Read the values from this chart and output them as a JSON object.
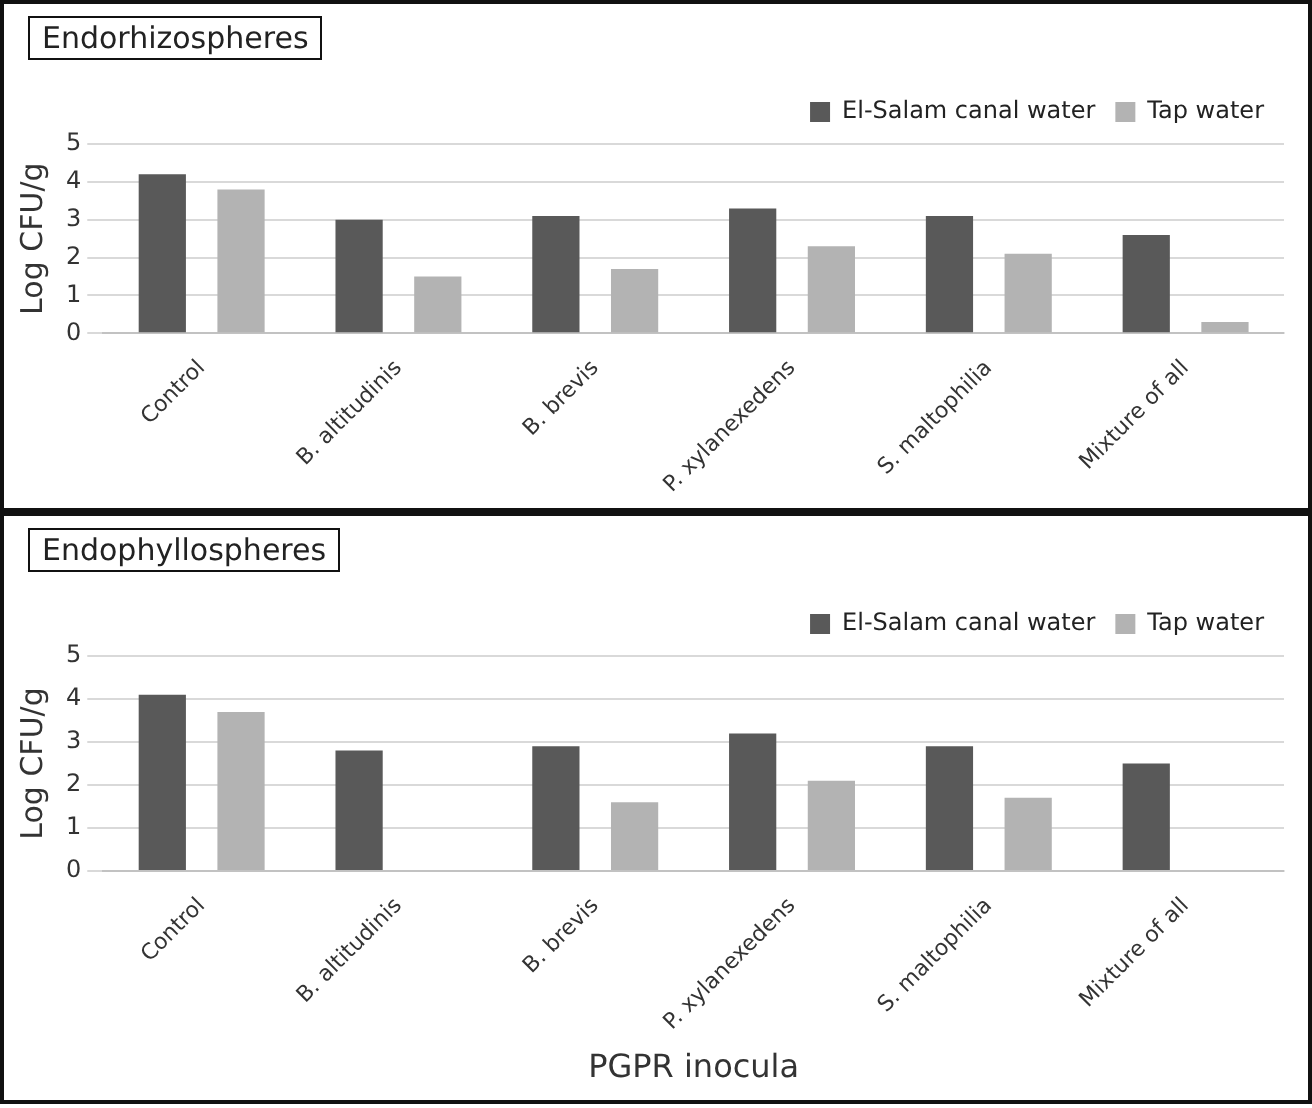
{
  "chart_data": [
    {
      "type": "bar",
      "title": "Endorhizospheres",
      "ylabel": "Log CFU/g",
      "categories": [
        "Control",
        "B. altitudinis",
        "B. brevis",
        "P. xylanexedens",
        "S. maltophilia",
        "Mixture of all"
      ],
      "series": [
        {
          "name": "El-Salam canal water",
          "color": "#595959",
          "values": [
            4.2,
            3.0,
            3.1,
            3.3,
            3.1,
            2.6
          ]
        },
        {
          "name": "Tap water",
          "color": "#b3b3b3",
          "values": [
            3.8,
            1.5,
            1.7,
            2.3,
            2.1,
            0.3
          ]
        }
      ],
      "ylim": [
        0,
        5
      ],
      "yticks": [
        0,
        1,
        2,
        3,
        4,
        5
      ],
      "grid": "y",
      "legend": "top right"
    },
    {
      "type": "bar",
      "title": "Endophyllospheres",
      "ylabel": "Log CFU/g",
      "xlabel": "PGPR inocula",
      "categories": [
        "Control",
        "B. altitudinis",
        "B. brevis",
        "P. xylanexedens",
        "S. maltophilia",
        "Mixture of all"
      ],
      "series": [
        {
          "name": "El-Salam canal water",
          "color": "#595959",
          "values": [
            4.1,
            2.8,
            2.9,
            3.2,
            2.9,
            2.5
          ]
        },
        {
          "name": "Tap water",
          "color": "#b3b3b3",
          "values": [
            3.7,
            0,
            1.6,
            2.1,
            1.7,
            0
          ]
        }
      ],
      "ylim": [
        0,
        5
      ],
      "yticks": [
        0,
        1,
        2,
        3,
        4,
        5
      ],
      "grid": "y",
      "legend": "top right"
    }
  ]
}
